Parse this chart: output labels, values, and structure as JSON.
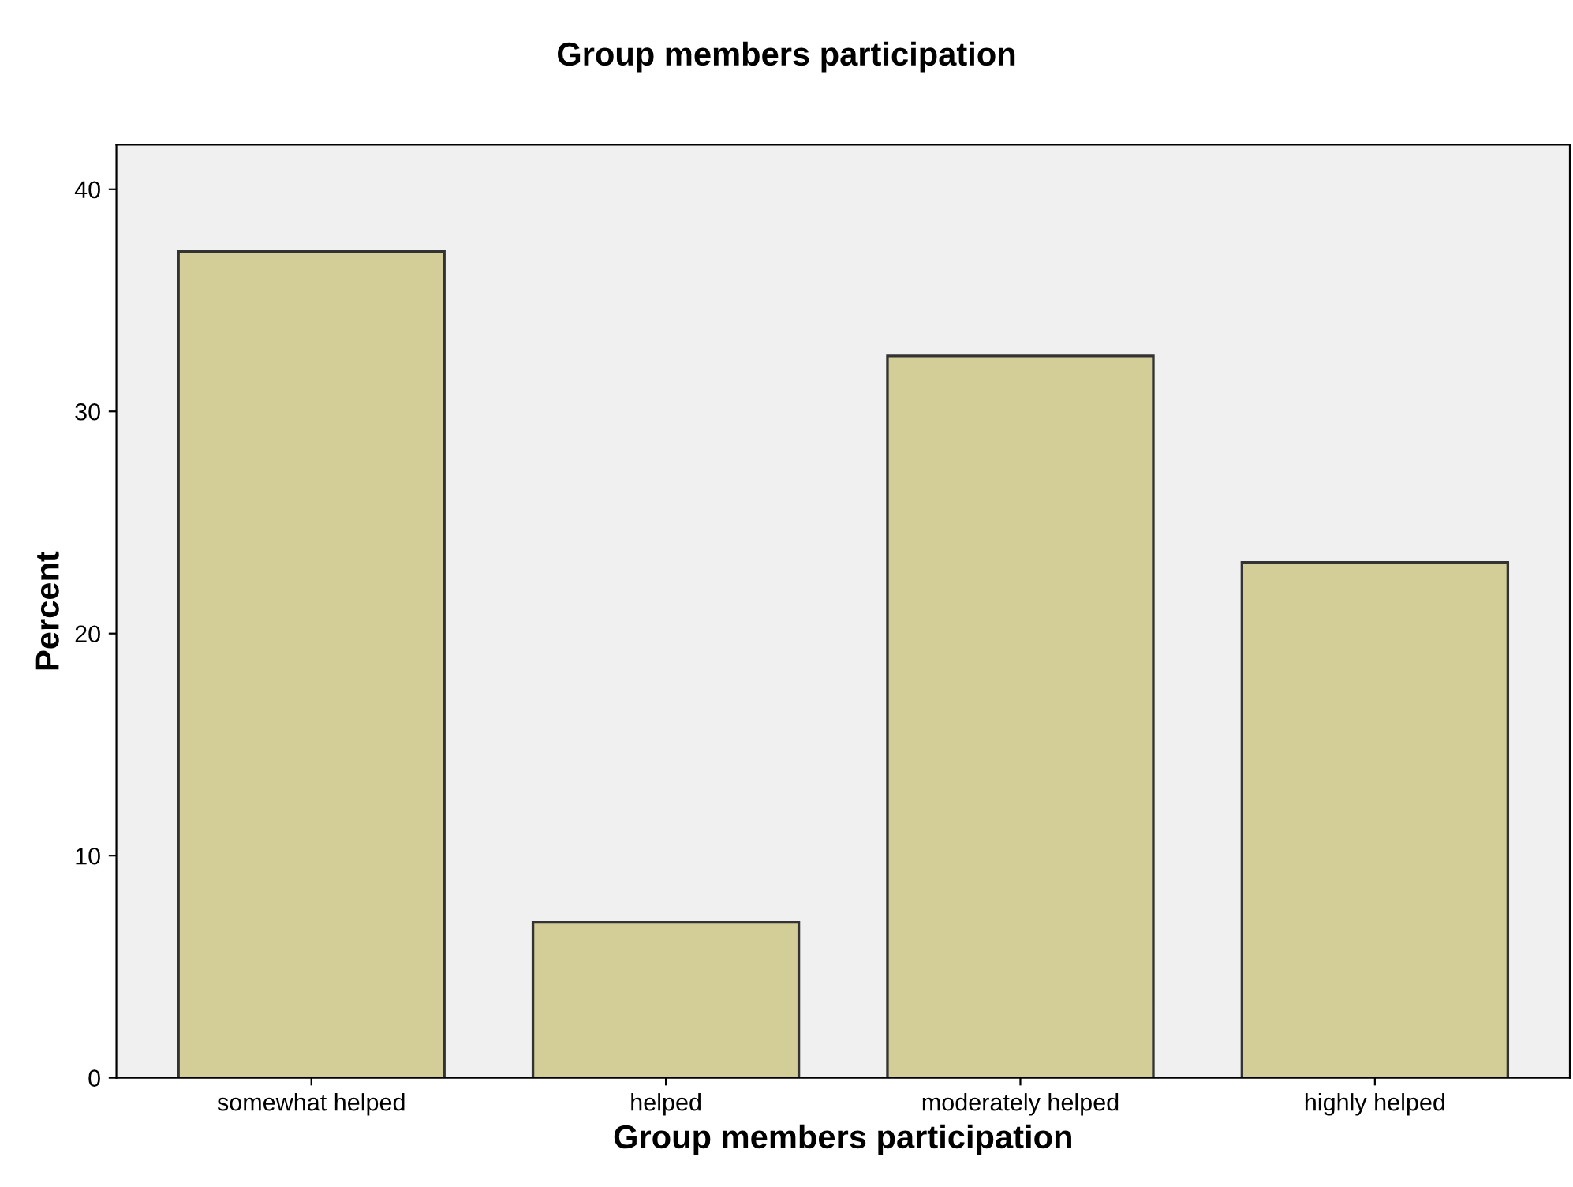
{
  "chart_data": {
    "type": "bar",
    "title": "Group members participation",
    "xlabel": "Group members participation",
    "ylabel": "Percent",
    "categories": [
      "somewhat helped",
      "helped",
      "moderately helped",
      "highly helped"
    ],
    "values": [
      37.2,
      7.0,
      32.5,
      23.2
    ],
    "color": "#d3ce97",
    "ylim": [
      0,
      42
    ],
    "yticks": [
      0,
      10,
      20,
      30,
      40
    ],
    "grid": false,
    "legend": false
  }
}
